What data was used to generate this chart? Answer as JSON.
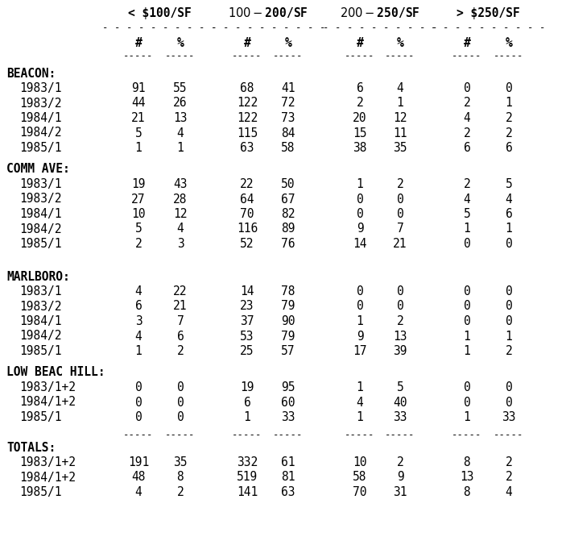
{
  "col_headers_top": [
    "< $100/SF",
    "$100-$200/SF",
    "$200-$250/SF",
    "> $250/SF"
  ],
  "sections": [
    {
      "name": "BEACON:",
      "rows": [
        {
          "label": "1983/1",
          "data": [
            "91",
            "55",
            "68",
            "41",
            "6",
            "4",
            "0",
            "0"
          ]
        },
        {
          "label": "1983/2",
          "data": [
            "44",
            "26",
            "122",
            "72",
            "2",
            "1",
            "2",
            "1"
          ]
        },
        {
          "label": "1984/1",
          "data": [
            "21",
            "13",
            "122",
            "73",
            "20",
            "12",
            "4",
            "2"
          ]
        },
        {
          "label": "1984/2",
          "data": [
            "5",
            "4",
            "115",
            "84",
            "15",
            "11",
            "2",
            "2"
          ]
        },
        {
          "label": "1985/1",
          "data": [
            "1",
            "1",
            "63",
            "58",
            "38",
            "35",
            "6",
            "6"
          ]
        }
      ]
    },
    {
      "name": "COMM AVE:",
      "rows": [
        {
          "label": "1983/1",
          "data": [
            "19",
            "43",
            "22",
            "50",
            "1",
            "2",
            "2",
            "5"
          ]
        },
        {
          "label": "1983/2",
          "data": [
            "27",
            "28",
            "64",
            "67",
            "0",
            "0",
            "4",
            "4"
          ]
        },
        {
          "label": "1984/1",
          "data": [
            "10",
            "12",
            "70",
            "82",
            "0",
            "0",
            "5",
            "6"
          ]
        },
        {
          "label": "1984/2",
          "data": [
            "5",
            "4",
            "116",
            "89",
            "9",
            "7",
            "1",
            "1"
          ]
        },
        {
          "label": "1985/1",
          "data": [
            "2",
            "3",
            "52",
            "76",
            "14",
            "21",
            "0",
            "0"
          ]
        }
      ]
    },
    {
      "name": "MARLBORO:",
      "rows": [
        {
          "label": "1983/1",
          "data": [
            "4",
            "22",
            "14",
            "78",
            "0",
            "0",
            "0",
            "0"
          ]
        },
        {
          "label": "1983/2",
          "data": [
            "6",
            "21",
            "23",
            "79",
            "0",
            "0",
            "0",
            "0"
          ]
        },
        {
          "label": "1984/1",
          "data": [
            "3",
            "7",
            "37",
            "90",
            "1",
            "2",
            "0",
            "0"
          ]
        },
        {
          "label": "1984/2",
          "data": [
            "4",
            "6",
            "53",
            "79",
            "9",
            "13",
            "1",
            "1"
          ]
        },
        {
          "label": "1985/1",
          "data": [
            "1",
            "2",
            "25",
            "57",
            "17",
            "39",
            "1",
            "2"
          ]
        }
      ]
    },
    {
      "name": "LOW BEAC HILL:",
      "rows": [
        {
          "label": "1983/1+2",
          "data": [
            "0",
            "0",
            "19",
            "95",
            "1",
            "5",
            "0",
            "0"
          ]
        },
        {
          "label": "1984/1+2",
          "data": [
            "0",
            "0",
            "6",
            "60",
            "4",
            "40",
            "0",
            "0"
          ]
        },
        {
          "label": "1985/1",
          "data": [
            "0",
            "0",
            "1",
            "33",
            "1",
            "33",
            "1",
            "33"
          ]
        }
      ]
    }
  ],
  "totals_section": {
    "name": "TOTALS:",
    "rows": [
      {
        "label": "1983/1+2",
        "data": [
          "191",
          "35",
          "332",
          "61",
          "10",
          "2",
          "8",
          "2"
        ]
      },
      {
        "label": "1984/1+2",
        "data": [
          "48",
          "8",
          "519",
          "81",
          "58",
          "9",
          "13",
          "2"
        ]
      },
      {
        "label": "1985/1",
        "data": [
          "4",
          "2",
          "141",
          "63",
          "70",
          "31",
          "8",
          "4"
        ]
      }
    ]
  },
  "bg_color": "#ffffff",
  "text_color": "#000000"
}
